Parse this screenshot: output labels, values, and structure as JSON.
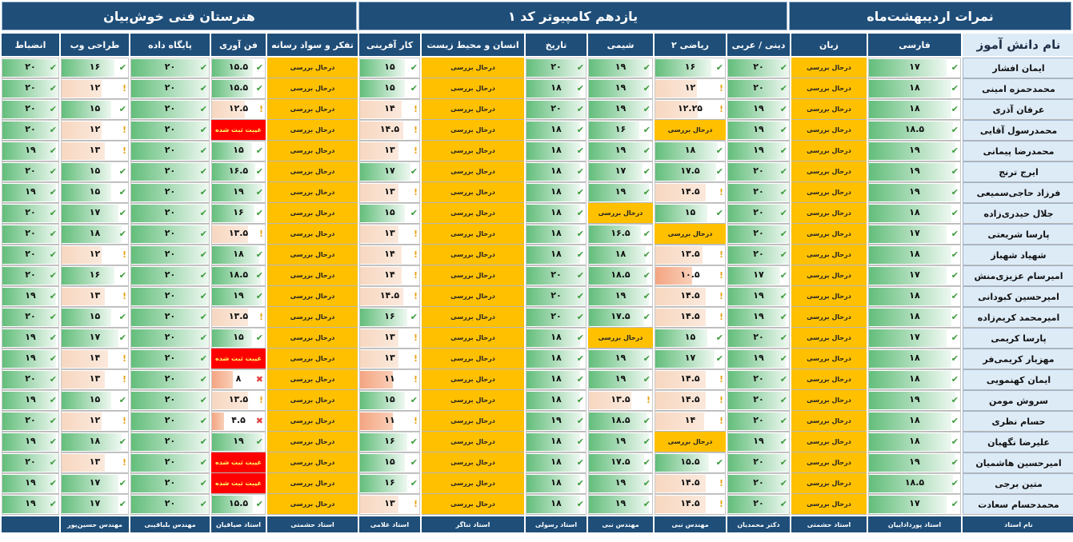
{
  "banners": {
    "school": "هنرستان فنی خوش‌بیان",
    "class": "یازدهم کامپیوتر کد ۱",
    "term": "نمرات اردیبهشت‌ماه"
  },
  "columns": [
    "انضباط",
    "طراحی وب",
    "پایگاه داده",
    "فن آوری",
    "تفکر و سواد رسانه",
    "کار آفرینی",
    "انسان و محیط زیست",
    "تاریخ",
    "شیمی",
    "ریاضی ۲",
    "دینی / عربی",
    "زبان",
    "فارسی"
  ],
  "name_header": "نام دانش آموز",
  "teachers": [
    "",
    "مهندس حسین‌پور",
    "مهندس بلباقیبی",
    "استاد صیاقیان",
    "استاد حشمتی",
    "استاد غلامی",
    "استاد تناگر",
    "استاد رسولی",
    "مهندس نبی",
    "مهندس نبی",
    "دکتر محمدیان",
    "استاد حشمتی",
    "استاد پورداداییان"
  ],
  "teacher_header": "نام استاد",
  "rows": [
    {
      "name": "ایمان افشار",
      "cells": [
        "۲۰",
        "۱۶",
        "۲۰",
        "۱۵.۵",
        "درحال بررسی",
        "۱۵",
        "درحال بررسی",
        "۲۰",
        "۱۹",
        "۱۶",
        "۲۰",
        "درحال بررسی",
        "۱۷"
      ]
    },
    {
      "name": "محمدحمزه امینی",
      "cells": [
        "۲۰",
        "۱۲",
        "۲۰",
        "۱۵.۵",
        "درحال بررسی",
        "۱۵",
        "درحال بررسی",
        "۱۸",
        "۱۹",
        "۱۲",
        "۲۰",
        "درحال بررسی",
        "۱۸"
      ]
    },
    {
      "name": "عرفان آذری",
      "cells": [
        "۲۰",
        "۱۵",
        "۲۰",
        "۱۲.۵",
        "درحال بررسی",
        "۱۴",
        "درحال بررسی",
        "۲۰",
        "۱۹",
        "۱۲.۲۵",
        "۱۹",
        "درحال بررسی",
        "۱۸"
      ]
    },
    {
      "name": "محمدرسول آقایی",
      "cells": [
        "۲۰",
        "۱۲",
        "۲۰",
        "غیبت ثبت شده",
        "درحال بررسی",
        "۱۴.۵",
        "درحال بررسی",
        "۱۸",
        "۱۶",
        "درحال بررسی",
        "۱۹",
        "درحال بررسی",
        "۱۸.۵"
      ]
    },
    {
      "name": "محمدرضا پیمانی",
      "cells": [
        "۱۹",
        "۱۳",
        "۲۰",
        "۱۵",
        "درحال بررسی",
        "۱۳",
        "درحال بررسی",
        "۱۸",
        "۱۹",
        "۱۸",
        "۱۹",
        "درحال بررسی",
        "۱۹"
      ]
    },
    {
      "name": "ایرج ترنج",
      "cells": [
        "۲۰",
        "۱۵",
        "۲۰",
        "۱۶.۵",
        "درحال بررسی",
        "۱۷",
        "درحال بررسی",
        "۱۸",
        "۱۷",
        "۱۷.۵",
        "۲۰",
        "درحال بررسی",
        "۱۹"
      ]
    },
    {
      "name": "فرزاد حاجی‌سمیعی",
      "cells": [
        "۱۹",
        "۱۵",
        "۲۰",
        "۱۹",
        "درحال بررسی",
        "۱۳",
        "درحال بررسی",
        "۱۸",
        "۱۹",
        "۱۴.۵",
        "۲۰",
        "درحال بررسی",
        "۱۹"
      ]
    },
    {
      "name": "جلال حیدری‌زاده",
      "cells": [
        "۲۰",
        "۱۷",
        "۲۰",
        "۱۶",
        "درحال بررسی",
        "۱۵",
        "درحال بررسی",
        "۱۸",
        "درحال بررسی",
        "۱۵",
        "۲۰",
        "درحال بررسی",
        "۱۸"
      ]
    },
    {
      "name": "پارسا شریعتی",
      "cells": [
        "۲۰",
        "۱۸",
        "۲۰",
        "۱۳.۵",
        "درحال بررسی",
        "۱۳",
        "درحال بررسی",
        "۱۸",
        "۱۶.۵",
        "درحال بررسی",
        "۲۰",
        "درحال بررسی",
        "۱۷"
      ]
    },
    {
      "name": "شهیاد شهباز",
      "cells": [
        "۲۰",
        "۱۲",
        "۲۰",
        "۱۸",
        "درحال بررسی",
        "۱۴",
        "درحال بررسی",
        "۱۸",
        "۱۸",
        "۱۳.۵",
        "۲۰",
        "درحال بررسی",
        "۱۸"
      ]
    },
    {
      "name": "امیرسام عزیزی‌منش",
      "cells": [
        "۲۰",
        "۱۶",
        "۲۰",
        "۱۸.۵",
        "درحال بررسی",
        "۱۴",
        "درحال بررسی",
        "۲۰",
        "۱۸.۵",
        "۱۰.۵",
        "۱۷",
        "درحال بررسی",
        "۱۷"
      ]
    },
    {
      "name": "امیرحسین کبودانی",
      "cells": [
        "۱۹",
        "۱۳",
        "۲۰",
        "۱۹",
        "درحال بررسی",
        "۱۴.۵",
        "درحال بررسی",
        "۲۰",
        "۱۹",
        "۱۴.۵",
        "۱۹",
        "درحال بررسی",
        "۱۸"
      ]
    },
    {
      "name": "امیرمحمد کریم‌زاده",
      "cells": [
        "۲۰",
        "۱۵",
        "۲۰",
        "۱۳.۵",
        "درحال بررسی",
        "۱۶",
        "درحال بررسی",
        "۲۰",
        "۱۷.۵",
        "۱۴.۵",
        "۱۹",
        "درحال بررسی",
        "۱۸"
      ]
    },
    {
      "name": "پارسا کریمی",
      "cells": [
        "۱۹",
        "۱۷",
        "۲۰",
        "۱۵",
        "درحال بررسی",
        "۱۳",
        "درحال بررسی",
        "۱۸",
        "درحال بررسی",
        "۱۵",
        "۲۰",
        "درحال بررسی",
        "۱۷"
      ]
    },
    {
      "name": "مهزیار کریمی‌فر",
      "cells": [
        "۱۹",
        "۱۴",
        "۲۰",
        "غیبت ثبت شده",
        "درحال بررسی",
        "۱۳",
        "درحال بررسی",
        "۱۸",
        "۱۹",
        "۱۷",
        "۱۹",
        "درحال بررسی",
        "۱۸"
      ]
    },
    {
      "name": "ایمان کهنمویی",
      "cells": [
        "۲۰",
        "۱۳",
        "۲۰",
        "۸",
        "درحال بررسی",
        "۱۱",
        "درحال بررسی",
        "۱۸",
        "۱۹",
        "۱۴.۵",
        "۲۰",
        "درحال بررسی",
        "۱۸"
      ]
    },
    {
      "name": "سروش مومن",
      "cells": [
        "۱۹",
        "۱۵",
        "۲۰",
        "۱۳.۵",
        "درحال بررسی",
        "۱۵",
        "درحال بررسی",
        "۱۸",
        "۱۳.۵",
        "۱۴.۵",
        "۲۰",
        "درحال بررسی",
        "۱۹"
      ]
    },
    {
      "name": "حسام نظری",
      "cells": [
        "۲۰",
        "۱۲",
        "۲۰",
        "۴.۵",
        "درحال بررسی",
        "۱۱",
        "درحال بررسی",
        "۱۹",
        "۱۸.۵",
        "۱۴",
        "۲۰",
        "درحال بررسی",
        "۱۸"
      ]
    },
    {
      "name": "علیرضا نگهبان",
      "cells": [
        "۱۹",
        "۱۸",
        "۲۰",
        "۱۹",
        "درحال بررسی",
        "۱۶",
        "درحال بررسی",
        "۱۸",
        "۱۹",
        "درحال بررسی",
        "۱۹",
        "درحال بررسی",
        "۱۸"
      ]
    },
    {
      "name": "امیرحسین هاشمیان",
      "cells": [
        "۲۰",
        "۱۳",
        "۲۰",
        "غیبت ثبت شده",
        "درحال بررسی",
        "۱۵",
        "درحال بررسی",
        "۱۸",
        "۱۷.۵",
        "۱۵.۵",
        "۲۰",
        "درحال بررسی",
        "۱۹"
      ]
    },
    {
      "name": "متین برجی",
      "cells": [
        "۱۹",
        "۱۷",
        "۲۰",
        "غیبت ثبت شده",
        "درحال بررسی",
        "۱۶",
        "درحال بررسی",
        "۱۸",
        "۱۹",
        "۱۴.۵",
        "۲۰",
        "درحال بررسی",
        "۱۸.۵"
      ]
    },
    {
      "name": "محمدحسام سعادت",
      "cells": [
        "۱۹",
        "۱۷",
        "۲۰",
        "۱۵.۵",
        "درحال بررسی",
        "۱۳",
        "درحال بررسی",
        "۱۸",
        "۱۹",
        "۱۴.۵",
        "۲۰",
        "درحال بررسی",
        "۱۷"
      ]
    }
  ],
  "status_colors": {
    "in_progress": "#ffc000",
    "absent": "#ff0000",
    "header": "#1f4e79",
    "name_cell": "#ddebf7",
    "good": "#63be7b"
  },
  "icons": {
    "good": "check-icon",
    "mid": "exclamation-icon",
    "bad": "cross-icon"
  }
}
